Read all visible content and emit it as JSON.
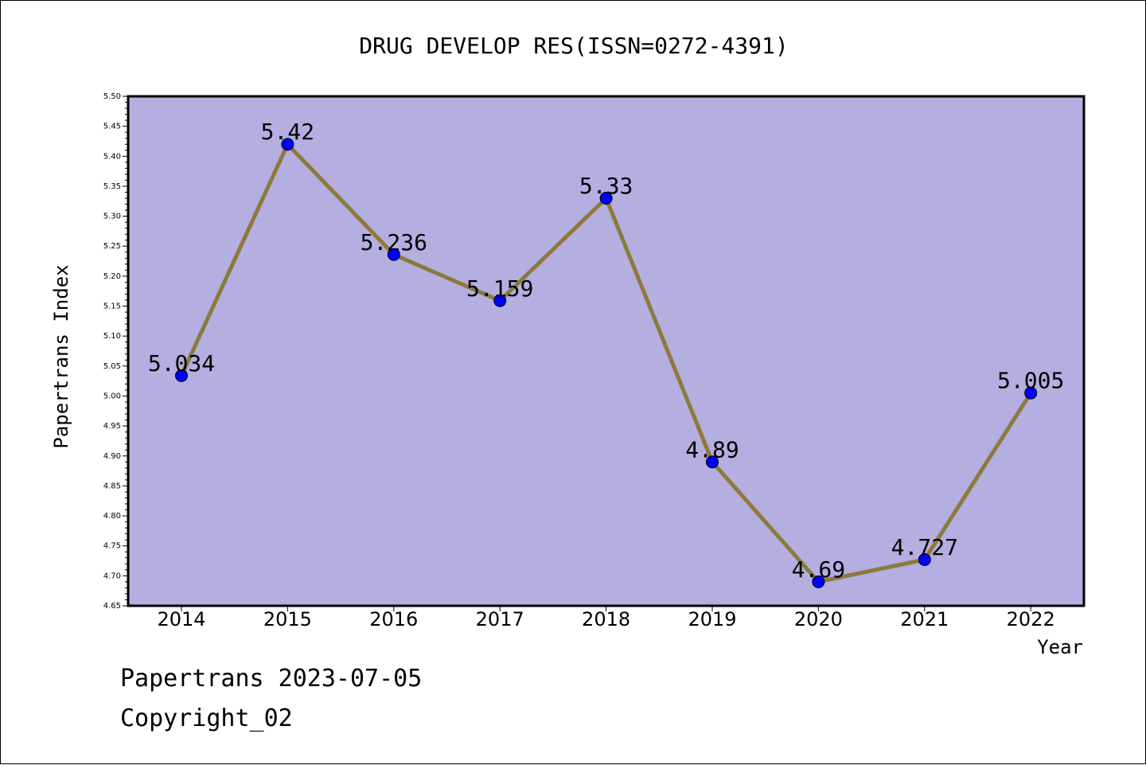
{
  "chart_data": {
    "type": "line",
    "title": "DRUG DEVELOP RES(ISSN=0272-4391)",
    "xlabel": "Year",
    "ylabel": "Papertrans Index",
    "categories": [
      "2014",
      "2015",
      "2016",
      "2017",
      "2018",
      "2019",
      "2020",
      "2021",
      "2022"
    ],
    "series": [
      {
        "values": [
          5.034,
          5.42,
          5.236,
          5.159,
          5.33,
          4.89,
          4.69,
          4.727,
          5.005
        ],
        "labels": [
          "5.034",
          "5.42",
          "5.236",
          "5.159",
          "5.33",
          "4.89",
          "4.69",
          "4.727",
          "5.005"
        ]
      }
    ],
    "ylim": [
      4.65,
      5.5
    ],
    "yticks": [
      "4.65",
      "4.70",
      "4.75",
      "4.80",
      "4.85",
      "4.90",
      "4.95",
      "5.00",
      "5.05",
      "5.10",
      "5.15",
      "5.20",
      "5.25",
      "5.30",
      "5.35",
      "5.40",
      "5.45",
      "5.50"
    ],
    "grid": false,
    "colors": {
      "plot_background": "#b5aee0",
      "line": "#8c7a3c",
      "marker": "#0000ff"
    }
  },
  "footer": {
    "line1": "Papertrans 2023-07-05",
    "line2": "Copyright_02"
  }
}
